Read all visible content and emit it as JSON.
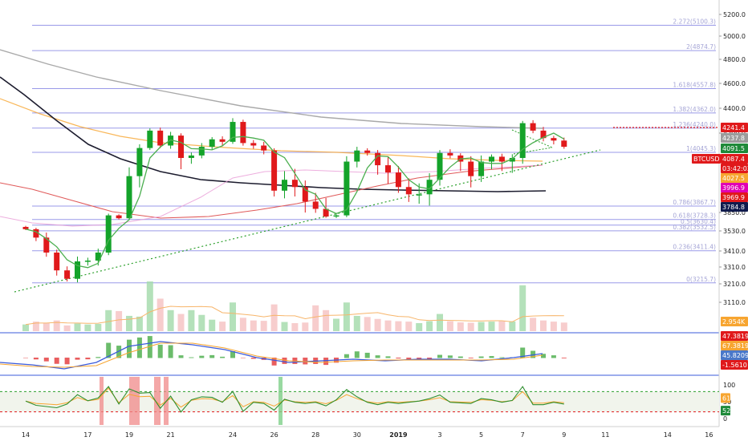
{
  "chart_data": {
    "type": "candlestick",
    "symbol": "BTCUSD",
    "price_axis": {
      "ticks": [
        5200.0,
        5000.0,
        4800.0,
        4600.0,
        4400.0,
        4200.0,
        4000.0,
        3850.0,
        3530.0,
        3410.0,
        3310.0,
        3210.0,
        3110.0
      ],
      "range": [
        3060,
        5280
      ]
    },
    "x_axis": {
      "ticks": [
        {
          "label": "14",
          "idx": 0
        },
        {
          "label": "17",
          "idx": 6
        },
        {
          "label": "19",
          "idx": 10
        },
        {
          "label": "21",
          "idx": 14
        },
        {
          "label": "24",
          "idx": 20
        },
        {
          "label": "26",
          "idx": 24
        },
        {
          "label": "28",
          "idx": 28
        },
        {
          "label": "30",
          "idx": 32
        },
        {
          "label": "2019",
          "idx": 36
        },
        {
          "label": "3",
          "idx": 40
        },
        {
          "label": "5",
          "idx": 44
        },
        {
          "label": "7",
          "idx": 48
        },
        {
          "label": "9",
          "idx": 52
        },
        {
          "label": "11",
          "idx": 56
        },
        {
          "label": "14",
          "idx": 62
        },
        {
          "label": "16",
          "idx": 66
        }
      ]
    },
    "fib_levels": [
      {
        "label": "2.272(5100.3)",
        "price": 5100.3
      },
      {
        "label": "2(4874.7)",
        "price": 4874.7
      },
      {
        "label": "1.618(4557.8)",
        "price": 4557.8
      },
      {
        "label": "1.382(4362.0)",
        "price": 4362.0
      },
      {
        "label": "1.236(4240.0)",
        "price": 4240.0
      },
      {
        "label": "1(4045.3)",
        "price": 4045.3
      },
      {
        "label": "0.786(3867.7)",
        "price": 3867.7
      },
      {
        "label": "0.618(3728.3)",
        "price": 3728.3
      },
      {
        "label": "0.5(3630.4)",
        "price": 3630.4
      },
      {
        "label": "0.382(3532.5)",
        "price": 3532.5
      },
      {
        "label": "0.236(3411.4)",
        "price": 3411.4
      },
      {
        "label": "0(3215.7)",
        "price": 3215.7
      }
    ],
    "price_tags": [
      {
        "text": "4241.4",
        "price": 4241.4,
        "color": "#e0191b"
      },
      {
        "text": "4237.8",
        "price": 4237.8,
        "color": "#9b9b9b"
      },
      {
        "text": "4091.5",
        "price": 4091.5,
        "color": "#1f8a3a"
      },
      {
        "text": "4087.4",
        "price": 4087.4,
        "color": "#e0191b"
      },
      {
        "text": "BTCUSD",
        "price": 4087.4,
        "color": "#e0191b"
      },
      {
        "text": "03:42:02",
        "price": 4042,
        "color": "#e0191b"
      },
      {
        "text": "4027.5",
        "price": 4027.5,
        "color": "#f7a530"
      },
      {
        "text": "3996.9",
        "price": 3996.9,
        "color": "#e100b4"
      },
      {
        "text": "3969.9",
        "price": 3969.9,
        "color": "#e0191b"
      },
      {
        "text": "3784.8",
        "price": 3784.8,
        "color": "#101b4d"
      }
    ],
    "ohlc_closes": [
      3560,
      3490,
      3400,
      3290,
      3240,
      3345,
      3350,
      3400,
      3800,
      3750,
      3950,
      4080,
      4220,
      4100,
      4180,
      4000,
      4020,
      4090,
      4150,
      4130,
      4290,
      4120,
      4100,
      4060,
      3910,
      3940,
      3920,
      3880,
      3860,
      3780,
      3800,
      3990,
      4060,
      4040,
      3980,
      3960,
      3920,
      3900,
      3900,
      3940,
      4040,
      4020,
      3990,
      3950,
      3990,
      4010,
      3990,
      4000,
      4280,
      4220,
      4160,
      4140,
      4090
    ],
    "volume_axis": {
      "label": "2.954K",
      "value": 2954
    },
    "volumes": [
      350,
      500,
      420,
      560,
      300,
      400,
      350,
      380,
      1100,
      1050,
      800,
      760,
      2600,
      1700,
      1100,
      900,
      1100,
      850,
      600,
      500,
      1500,
      700,
      560,
      540,
      1400,
      480,
      420,
      450,
      1350,
      1100,
      650,
      1500,
      800,
      740,
      640,
      560,
      520,
      500,
      420,
      520,
      900,
      520,
      460,
      440,
      480,
      500,
      520,
      510,
      2400,
      700,
      560,
      500,
      450
    ],
    "macd_tags": [
      {
        "text": "47.3819",
        "color": "#e0191b"
      },
      {
        "text": "67.3819",
        "color": "#f7a530"
      },
      {
        "text": "45.8209",
        "color": "#4a78c9"
      },
      {
        "text": "-1.5610",
        "color": "#e0191b"
      }
    ],
    "rsi_axis": {
      "ticks": [
        100,
        50,
        0
      ]
    },
    "rsi_tags": [
      {
        "text": "61",
        "value": 61,
        "color": "#f7a530"
      },
      {
        "text": "52",
        "value": 52,
        "color": "#1f8a3a"
      }
    ]
  }
}
